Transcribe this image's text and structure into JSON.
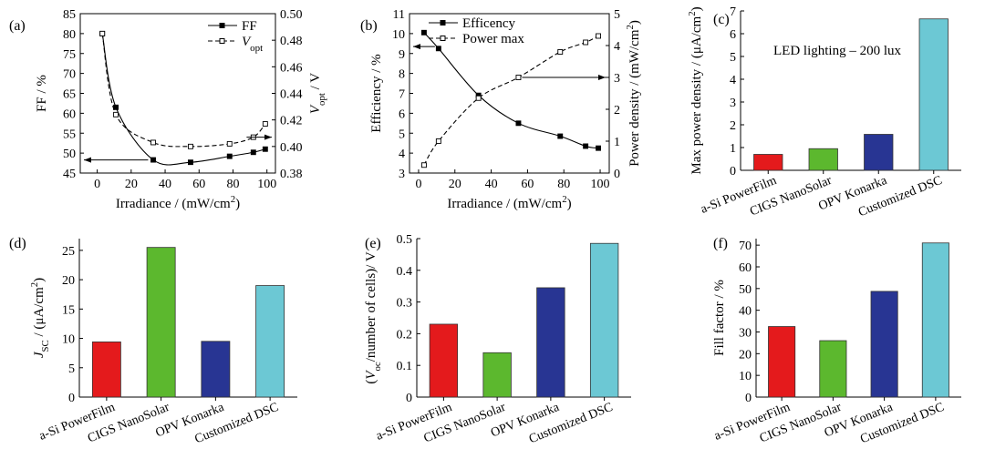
{
  "chart_data": [
    {
      "panel": "(a)",
      "type": "line",
      "xlabel": "Irradiance / (mW/cm²)",
      "ylabel": "FF / %",
      "y2label": "V_opt / V",
      "xlim": [
        -10,
        105
      ],
      "ylim": [
        45,
        85
      ],
      "y2lim": [
        0.38,
        0.5
      ],
      "xticks": [
        0,
        20,
        40,
        60,
        80,
        100
      ],
      "yticks": [
        45,
        50,
        55,
        60,
        65,
        70,
        75,
        80,
        85
      ],
      "y2ticks": [
        0.38,
        0.4,
        0.42,
        0.44,
        0.46,
        0.48,
        0.5
      ],
      "legend": [
        "FF",
        "V_opt"
      ],
      "series": [
        {
          "name": "FF",
          "axis": "left",
          "style": "solid",
          "marker": "filled-square",
          "x": [
            3,
            11,
            33,
            55,
            78,
            92,
            99
          ],
          "y": [
            80,
            61.5,
            48.3,
            47.7,
            49.2,
            50.2,
            51
          ]
        },
        {
          "name": "V_opt",
          "axis": "right",
          "style": "dashed",
          "marker": "open-square",
          "x": [
            3,
            11,
            33,
            55,
            78,
            92,
            99
          ],
          "y": [
            0.485,
            0.424,
            0.403,
            0.4,
            0.402,
            0.407,
            0.417
          ]
        }
      ],
      "arrows": [
        "left",
        "right"
      ]
    },
    {
      "panel": "(b)",
      "type": "line",
      "xlabel": "Irradiance / (mW/cm²)",
      "ylabel": "Efficiency / %",
      "y2label": "Power density / (mW/cm²)",
      "xlim": [
        -5,
        105
      ],
      "ylim": [
        3,
        11
      ],
      "y2lim": [
        0,
        5
      ],
      "xticks": [
        0,
        20,
        40,
        60,
        80,
        100
      ],
      "yticks": [
        3,
        4,
        5,
        6,
        7,
        8,
        9,
        10,
        11
      ],
      "y2ticks": [
        0,
        1,
        2,
        3,
        4,
        5
      ],
      "legend": [
        "Efficency",
        "Power max"
      ],
      "series": [
        {
          "name": "Efficency",
          "axis": "left",
          "style": "solid",
          "marker": "filled-square",
          "x": [
            3,
            11,
            33,
            55,
            78,
            92,
            99
          ],
          "y": [
            10.05,
            9.25,
            6.9,
            5.5,
            4.85,
            4.35,
            4.25
          ]
        },
        {
          "name": "Power max",
          "axis": "right",
          "style": "dashed",
          "marker": "open-square",
          "x": [
            3,
            11,
            33,
            55,
            78,
            92,
            99
          ],
          "y": [
            0.25,
            1.0,
            2.35,
            3.0,
            3.8,
            4.1,
            4.3
          ]
        }
      ],
      "arrows": [
        "left",
        "right"
      ]
    },
    {
      "panel": "(c)",
      "type": "bar",
      "ylabel": "Max power density / (μA/cm²)",
      "annotation": "LED lighting – 200 lux",
      "categories": [
        "a-Si PowerFilm",
        "CIGS NanoSolar",
        "OPV Konarka",
        "Customized DSC"
      ],
      "values": [
        0.7,
        0.95,
        1.58,
        6.65
      ],
      "colors": [
        "#e41a1c",
        "#5cb82e",
        "#283593",
        "#6cc8d4"
      ],
      "ylim": [
        0,
        7
      ],
      "yticks": [
        0,
        1,
        2,
        3,
        4,
        5,
        6,
        7
      ]
    },
    {
      "panel": "(d)",
      "type": "bar",
      "ylabel": "J_SC / (μA/cm²)",
      "categories": [
        "a-Si PowerFilm",
        "CIGS NanoSolar",
        "OPV Konarka",
        "Customized DSC"
      ],
      "values": [
        9.4,
        25.5,
        9.5,
        19
      ],
      "colors": [
        "#e41a1c",
        "#5cb82e",
        "#283593",
        "#6cc8d4"
      ],
      "ylim": [
        0,
        27
      ],
      "yticks": [
        0,
        5,
        10,
        15,
        20,
        25
      ]
    },
    {
      "panel": "(e)",
      "type": "bar",
      "ylabel": "(V_oc/number of cells)/ V",
      "categories": [
        "a-Si PowerFilm",
        "CIGS NanoSolar",
        "OPV Konarka",
        "Customized DSC"
      ],
      "values": [
        0.23,
        0.14,
        0.345,
        0.485
      ],
      "colors": [
        "#e41a1c",
        "#5cb82e",
        "#283593",
        "#6cc8d4"
      ],
      "ylim": [
        0,
        0.5
      ],
      "yticks": [
        0,
        0.1,
        0.2,
        0.3,
        0.4,
        0.5
      ]
    },
    {
      "panel": "(f)",
      "type": "bar",
      "ylabel": "Fill factor / %",
      "categories": [
        "a-Si PowerFilm",
        "CIGS NanoSolar",
        "OPV Konarka",
        "Customized DSC"
      ],
      "values": [
        32.5,
        26,
        48.7,
        71
      ],
      "colors": [
        "#e41a1c",
        "#5cb82e",
        "#283593",
        "#6cc8d4"
      ],
      "ylim": [
        0,
        73
      ],
      "yticks": [
        0,
        10,
        20,
        30,
        40,
        50,
        60,
        70
      ]
    }
  ]
}
